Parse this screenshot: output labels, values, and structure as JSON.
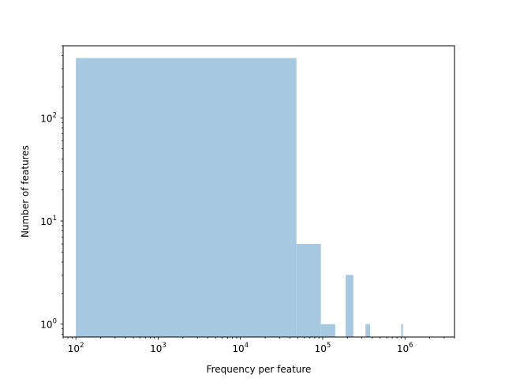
{
  "chart_data": {
    "type": "bar",
    "subtype": "histogram",
    "title": "",
    "xlabel": "Frequency per feature",
    "ylabel": "Number of features",
    "xscale": "log",
    "yscale": "log",
    "xlim": [
      70,
      4000000
    ],
    "ylim": [
      0.75,
      500
    ],
    "grid": false,
    "bar_color": "#a6c8e0",
    "bins": [
      {
        "x0": 100,
        "x1": 48000,
        "count": 380
      },
      {
        "x0": 48000,
        "x1": 95000,
        "count": 6
      },
      {
        "x0": 95000,
        "x1": 142000,
        "count": 1
      },
      {
        "x0": 190000,
        "x1": 236000,
        "count": 3
      },
      {
        "x0": 331000,
        "x1": 378000,
        "count": 1
      },
      {
        "x0": 900000,
        "x1": 945000,
        "count": 1
      }
    ],
    "x_ticks": [
      {
        "value": 100,
        "base": "10",
        "exp": "2"
      },
      {
        "value": 1000,
        "base": "10",
        "exp": "3"
      },
      {
        "value": 10000,
        "base": "10",
        "exp": "4"
      },
      {
        "value": 100000,
        "base": "10",
        "exp": "5"
      },
      {
        "value": 1000000,
        "base": "10",
        "exp": "6"
      }
    ],
    "y_ticks": [
      {
        "value": 1,
        "base": "10",
        "exp": "0"
      },
      {
        "value": 10,
        "base": "10",
        "exp": "1"
      },
      {
        "value": 100,
        "base": "10",
        "exp": "2"
      }
    ]
  }
}
